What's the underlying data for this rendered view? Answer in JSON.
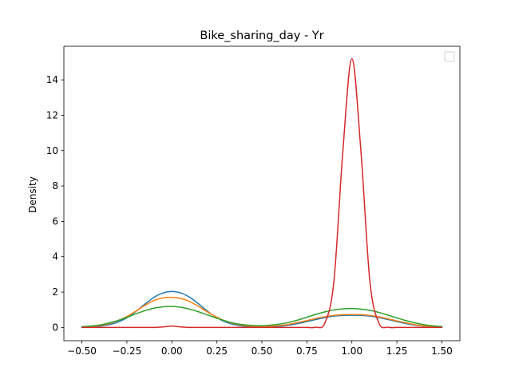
{
  "chart_data": {
    "type": "line",
    "title": "Bike_sharing_day - Yr",
    "xlabel": "",
    "ylabel": "Density",
    "xlim": [
      -0.6,
      1.6
    ],
    "ylim": [
      -0.75,
      15.9
    ],
    "x_ticks": [
      -0.5,
      -0.25,
      0.0,
      0.25,
      0.5,
      0.75,
      1.0,
      1.25,
      1.5
    ],
    "x_tick_labels": [
      "−0.50",
      "−0.25",
      "0.00",
      "0.25",
      "0.50",
      "0.75",
      "1.00",
      "1.25",
      "1.50"
    ],
    "y_ticks": [
      0,
      2,
      4,
      6,
      8,
      10,
      12,
      14
    ],
    "y_tick_labels": [
      "0",
      "2",
      "4",
      "6",
      "8",
      "10",
      "12",
      "14"
    ],
    "grid": false,
    "legend": "top-right",
    "x": [
      -0.5,
      -0.45,
      -0.4,
      -0.35,
      -0.3,
      -0.25,
      -0.2,
      -0.15,
      -0.1,
      -0.05,
      0.0,
      0.05,
      0.1,
      0.15,
      0.2,
      0.25,
      0.3,
      0.35,
      0.4,
      0.45,
      0.5,
      0.55,
      0.6,
      0.65,
      0.7,
      0.75,
      0.8,
      0.85,
      0.9,
      0.95,
      1.0,
      1.05,
      1.1,
      1.15,
      1.2,
      1.25,
      1.3,
      1.35,
      1.4,
      1.45,
      1.5
    ],
    "series": [
      {
        "color": "#1f77b4",
        "values": [
          0.01,
          0.03,
          0.07,
          0.15,
          0.3,
          0.55,
          0.9,
          1.32,
          1.7,
          1.95,
          2.03,
          1.95,
          1.7,
          1.32,
          0.9,
          0.55,
          0.3,
          0.15,
          0.07,
          0.04,
          0.03,
          0.04,
          0.07,
          0.13,
          0.22,
          0.33,
          0.45,
          0.56,
          0.64,
          0.68,
          0.69,
          0.68,
          0.64,
          0.56,
          0.45,
          0.33,
          0.22,
          0.13,
          0.07,
          0.03,
          0.01
        ]
      },
      {
        "color": "#ff7f0e",
        "values": [
          0.02,
          0.05,
          0.11,
          0.21,
          0.38,
          0.62,
          0.92,
          1.25,
          1.52,
          1.67,
          1.7,
          1.64,
          1.46,
          1.18,
          0.86,
          0.58,
          0.35,
          0.2,
          0.11,
          0.07,
          0.06,
          0.07,
          0.11,
          0.18,
          0.28,
          0.39,
          0.51,
          0.61,
          0.68,
          0.72,
          0.73,
          0.72,
          0.68,
          0.6,
          0.49,
          0.37,
          0.26,
          0.16,
          0.09,
          0.05,
          0.02
        ]
      },
      {
        "color": "#2ca02c",
        "values": [
          0.04,
          0.08,
          0.14,
          0.25,
          0.39,
          0.57,
          0.77,
          0.95,
          1.09,
          1.17,
          1.19,
          1.14,
          1.03,
          0.88,
          0.7,
          0.52,
          0.36,
          0.23,
          0.15,
          0.11,
          0.1,
          0.13,
          0.19,
          0.29,
          0.42,
          0.58,
          0.74,
          0.88,
          0.99,
          1.05,
          1.07,
          1.04,
          0.97,
          0.85,
          0.7,
          0.54,
          0.39,
          0.26,
          0.16,
          0.09,
          0.05
        ]
      },
      {
        "color": "#d62728",
        "values": [
          0.0,
          0.0,
          0.0,
          0.0,
          0.0,
          0.0,
          0.0,
          0.0,
          0.0,
          0.03,
          0.08,
          0.03,
          0.0,
          0.0,
          0.0,
          0.0,
          0.0,
          0.0,
          0.0,
          0.0,
          0.0,
          0.0,
          0.0,
          0.0,
          0.0,
          0.0,
          0.01,
          0.25,
          2.6,
          10.0,
          15.2,
          10.0,
          2.6,
          0.25,
          0.01,
          0.0,
          0.0,
          0.0,
          0.0,
          0.0,
          0.0
        ]
      }
    ]
  }
}
